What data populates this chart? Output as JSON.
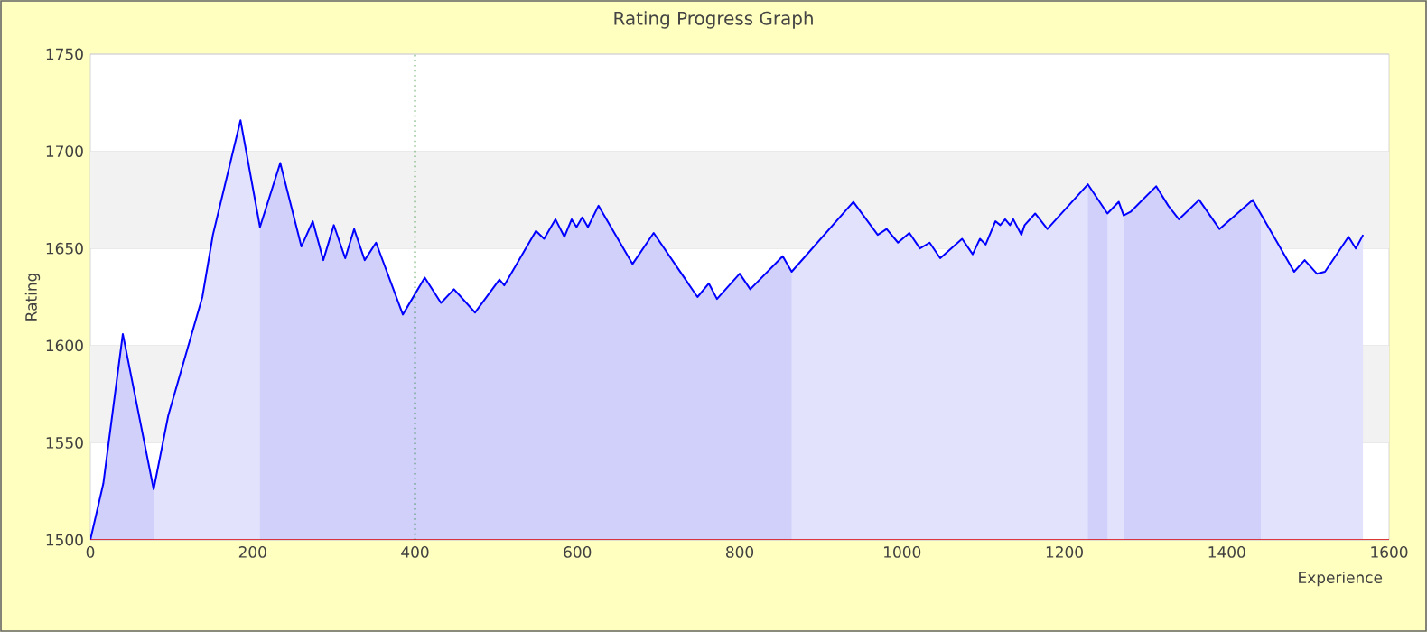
{
  "chart_data": {
    "type": "line",
    "title": "Rating Progress Graph",
    "xlabel": "Experience",
    "ylabel": "Rating",
    "xlim": [
      0,
      1600
    ],
    "ylim": [
      1500,
      1750
    ],
    "xticks": [
      0,
      200,
      400,
      600,
      800,
      1000,
      1200,
      1400,
      1600
    ],
    "yticks": [
      1500,
      1550,
      1600,
      1650,
      1700,
      1750
    ],
    "grid": "y",
    "marker": "none",
    "line_style": "solid",
    "series": [
      {
        "color": "#0000ff",
        "x": [
          0,
          16,
          40,
          78,
          96,
          138,
          151,
          185,
          209,
          234,
          260,
          274,
          287,
          300,
          314,
          325,
          338,
          352,
          385,
          412,
          432,
          448,
          474,
          504,
          510,
          549,
          559,
          573,
          584,
          593,
          599,
          606,
          613,
          626,
          668,
          694,
          748,
          762,
          772,
          800,
          813,
          853,
          864,
          940,
          970,
          981,
          995,
          1009,
          1022,
          1034,
          1047,
          1074,
          1087,
          1096,
          1103,
          1115,
          1121,
          1127,
          1133,
          1137,
          1147,
          1151,
          1164,
          1179,
          1229,
          1253,
          1267,
          1273,
          1282,
          1313,
          1328,
          1341,
          1366,
          1391,
          1432,
          1483,
          1496,
          1511,
          1521,
          1550,
          1559,
          1568
        ],
        "values": [
          1500,
          1529,
          1606,
          1526,
          1564,
          1625,
          1657,
          1716,
          1661,
          1694,
          1651,
          1664,
          1644,
          1662,
          1645,
          1660,
          1644,
          1653,
          1616,
          1635,
          1622,
          1629,
          1617,
          1634,
          1631,
          1659,
          1655,
          1665,
          1656,
          1665,
          1661,
          1666,
          1661,
          1672,
          1642,
          1658,
          1625,
          1632,
          1624,
          1637,
          1629,
          1646,
          1638,
          1674,
          1657,
          1660,
          1653,
          1658,
          1650,
          1653,
          1645,
          1655,
          1647,
          1655,
          1652,
          1664,
          1662,
          1665,
          1662,
          1665,
          1657,
          1662,
          1668,
          1660,
          1683,
          1668,
          1674,
          1667,
          1669,
          1682,
          1672,
          1665,
          1675,
          1660,
          1675,
          1638,
          1644,
          1637,
          1638,
          1656,
          1650,
          1657
        ]
      }
    ],
    "bands": [
      {
        "axis": "y",
        "from": 1550,
        "to": 1600,
        "color": "#f2f2f2"
      },
      {
        "axis": "y",
        "from": 1650,
        "to": 1700,
        "color": "#f2f2f2"
      },
      {
        "axis": "x",
        "from": 0,
        "to": 1568,
        "color": "#e2e2fc"
      },
      {
        "axis": "x",
        "from": 0,
        "to": 78,
        "color": "#d0d0fa"
      },
      {
        "axis": "x",
        "from": 209,
        "to": 864,
        "color": "#d0d0fa"
      },
      {
        "axis": "x",
        "from": 1229,
        "to": 1253,
        "color": "#d0d0fa"
      },
      {
        "axis": "x",
        "from": 1273,
        "to": 1442,
        "color": "#d0d0fa"
      }
    ],
    "ref_lines": [
      {
        "axis": "x",
        "value": 400,
        "color": "#007700",
        "line_style": "dotted"
      }
    ]
  }
}
